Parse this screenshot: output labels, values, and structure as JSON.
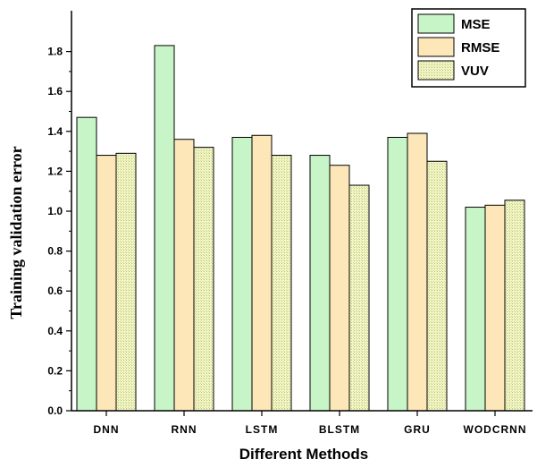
{
  "chart_data": {
    "type": "bar",
    "title": "",
    "xlabel": "Different Methods",
    "ylabel": "Training validation error",
    "categories": [
      "DNN",
      "RNN",
      "LSTM",
      "BLSTM",
      "GRU",
      "WODCRNN"
    ],
    "series": [
      {
        "name": "MSE",
        "values": [
          1.47,
          1.83,
          1.37,
          1.28,
          1.37,
          1.02
        ],
        "color": "#c8f5c8",
        "pattern": "solid"
      },
      {
        "name": "RMSE",
        "values": [
          1.28,
          1.36,
          1.38,
          1.23,
          1.39,
          1.03
        ],
        "color": "#fde7b8",
        "pattern": "solid"
      },
      {
        "name": "VUV",
        "values": [
          1.29,
          1.32,
          1.28,
          1.13,
          1.25,
          1.055
        ],
        "color": "#eef3b0",
        "pattern": "dotted-grid"
      }
    ],
    "yticks": [
      "0.0",
      "0.2",
      "0.4",
      "0.6",
      "0.8",
      "1.0",
      "1.2",
      "1.4",
      "1.6",
      "1.8"
    ],
    "ylim": [
      0,
      1.9
    ],
    "grid": false,
    "legend_position": "top-right"
  }
}
